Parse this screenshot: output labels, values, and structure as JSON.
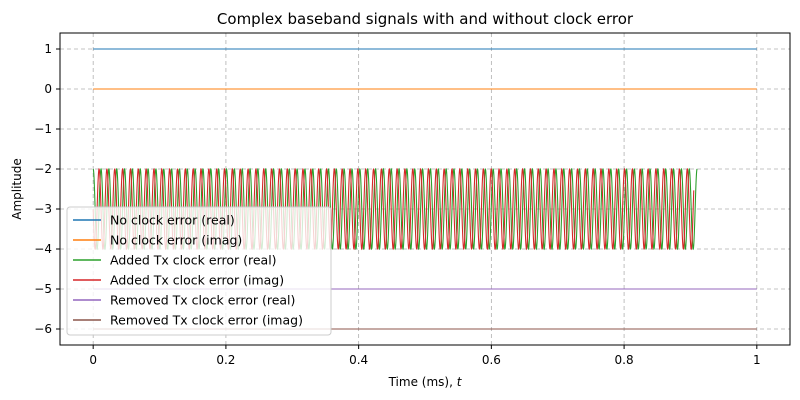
{
  "chart_data": {
    "type": "line",
    "title": "Complex baseband signals with and without clock error",
    "xlabel": "Time (ms), ",
    "xlabel_italic": "t",
    "ylabel": "Amplitude",
    "xlim": [
      -0.05,
      1.05
    ],
    "ylim": [
      -6.4,
      1.4
    ],
    "x_ticks": [
      0,
      0.2,
      0.4,
      0.6,
      0.8,
      1
    ],
    "x_tick_labels": [
      "0",
      "0.2",
      "0.4",
      "0.6",
      "0.8",
      "1"
    ],
    "y_ticks": [
      1,
      0,
      -1,
      -2,
      -3,
      -4,
      -5,
      -6
    ],
    "y_tick_labels": [
      "1",
      "0",
      "−1",
      "−2",
      "−3",
      "−4",
      "−5",
      "−6"
    ],
    "grid": true,
    "legend_position": "lower-left",
    "series": [
      {
        "name": "No clock error (real)",
        "color": "#1f77b4",
        "kind": "constant",
        "value": 1,
        "x_start": 0,
        "x_end": 1
      },
      {
        "name": "No clock error (imag)",
        "color": "#ff7f0e",
        "kind": "constant",
        "value": 0,
        "x_start": 0,
        "x_end": 1
      },
      {
        "name": "Added Tx clock error (real)",
        "color": "#2ca02c",
        "kind": "oscillation",
        "center": -3,
        "amplitude": 1,
        "x_start": 0,
        "x_end": 0.91,
        "cycles": 77,
        "phase": 0
      },
      {
        "name": "Added Tx clock error (imag)",
        "color": "#d62728",
        "kind": "oscillation",
        "center": -3,
        "amplitude": 1,
        "x_start": 0,
        "x_end": 0.905,
        "cycles": 77,
        "phase": 1.5708
      },
      {
        "name": "Removed Tx clock error (real)",
        "color": "#9467bd",
        "kind": "constant",
        "value": -5,
        "x_start": 0,
        "x_end": 1
      },
      {
        "name": "Removed Tx clock error (imag)",
        "color": "#8c564b",
        "kind": "constant",
        "value": -6,
        "x_start": 0,
        "x_end": 1
      }
    ]
  }
}
